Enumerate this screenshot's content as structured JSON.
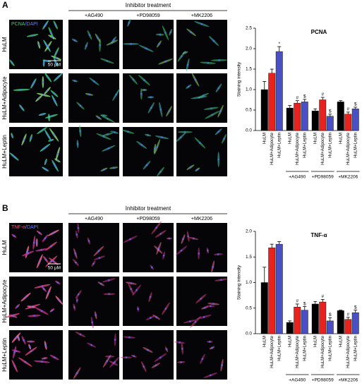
{
  "panels": [
    {
      "letter": "A",
      "stain": "PCNA",
      "counterstain": "/DAPI",
      "scale": "50 μM",
      "treatment_header": "Inhibitor treatment",
      "columns": [
        "+AG490",
        "+PD98059",
        "+MK2206"
      ],
      "rows": [
        "HuLM",
        "HuLM+Adipocyte",
        "HuLM+Leptin"
      ]
    },
    {
      "letter": "B",
      "stain": "TNF-α",
      "counterstain": "/DAPI",
      "scale": "50 μM",
      "treatment_header": "Inhibitor treatment",
      "columns": [
        "+AG490",
        "+PD98059",
        "+MK2206"
      ],
      "rows": [
        "HuLM",
        "HuLM+Adipocyte",
        "HuLM+Leptin"
      ]
    }
  ],
  "chart_data": [
    {
      "type": "bar",
      "title": "PCNA",
      "y_label": "Staining intensity",
      "categories": [
        "HuLM",
        "HuLM+Adipocyte",
        "HuLM+Leptin",
        "HuLM",
        "HuLM+Adipocyte",
        "HuLM+Leptin",
        "HuLM",
        "HuLM+Adipocyte",
        "HuLM+Leptin",
        "HuLM",
        "HuLM+Adipocyte",
        "HuLM+Leptin"
      ],
      "values": [
        1.0,
        1.4,
        1.93,
        0.55,
        0.67,
        0.7,
        0.48,
        0.75,
        0.35,
        0.7,
        0.4,
        0.53
      ],
      "errors": [
        0.2,
        0.1,
        0.12,
        0.06,
        0.06,
        0.06,
        0.05,
        0.06,
        0.05,
        0.03,
        0.05,
        0.04
      ],
      "colors": [
        "#000000",
        "#e8231f",
        "#4b4fc4",
        "#000000",
        "#e8231f",
        "#4b4fc4",
        "#000000",
        "#e8231f",
        "#4b4fc4",
        "#000000",
        "#e8231f",
        "#4b4fc4"
      ],
      "significance": [
        null,
        null,
        "*",
        null,
        "#",
        "$",
        null,
        "#",
        "$",
        null,
        "#",
        "$"
      ],
      "group_labels": [
        "+AG490",
        "+PD98059",
        "+MK2206"
      ],
      "ylim": [
        0,
        2.5
      ],
      "yticks": [
        {
          "value": 0,
          "label": "0.0"
        },
        0.5,
        {
          "value": 1,
          "label": "1.0"
        },
        1.5,
        {
          "value": 2,
          "label": "2.0"
        },
        2.5
      ]
    },
    {
      "type": "bar",
      "title": "TNF-α",
      "y_label": "Staining intensity",
      "categories": [
        "HuLM",
        "HuLM+Adipocyte",
        "HuLM+Leptin",
        "HuLM",
        "HuLM+Adipocyte",
        "HuLM+Leptin",
        "HuLM",
        "HuLM+Adipocyte",
        "HuLM+Leptin",
        "HuLM",
        "HuLM+Adipocyte",
        "HuLM+Leptin"
      ],
      "values": [
        1.0,
        1.68,
        1.75,
        0.22,
        0.52,
        0.46,
        0.58,
        0.62,
        0.25,
        0.45,
        0.28,
        0.41
      ],
      "errors": [
        0.3,
        0.07,
        0.05,
        0.03,
        0.06,
        0.07,
        0.05,
        0.05,
        0.06,
        0.01,
        0.04,
        0.05
      ],
      "colors": [
        "#000000",
        "#e8231f",
        "#4b4fc4",
        "#000000",
        "#e8231f",
        "#4b4fc4",
        "#000000",
        "#e8231f",
        "#4b4fc4",
        "#000000",
        "#e8231f",
        "#4b4fc4"
      ],
      "significance": [
        null,
        null,
        null,
        null,
        "#",
        "$",
        null,
        "#",
        "$",
        null,
        "#",
        "$"
      ],
      "group_labels": [
        "+AG490",
        "+PD98059",
        "+MK2206"
      ],
      "ylim": [
        0,
        2.0
      ],
      "yticks": [
        {
          "value": 0,
          "label": "0.0"
        },
        0.5,
        {
          "value": 1,
          "label": "1.0"
        },
        1.5,
        {
          "value": 2,
          "label": "2.0"
        }
      ]
    }
  ]
}
